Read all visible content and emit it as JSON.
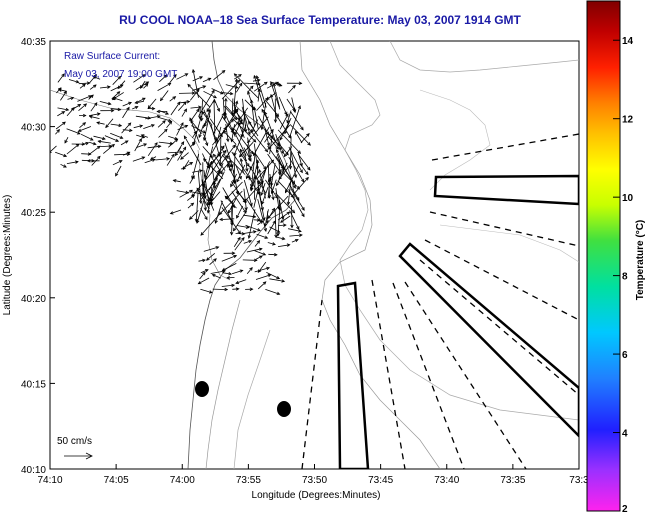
{
  "title": "RU COOL  NOAA–18  Sea Surface Temperature:  May 03, 2007 1914 GMT",
  "annotation": {
    "line1": "Raw Surface Current:",
    "line2": "May 03, 2007 19:00 GMT"
  },
  "scale": {
    "label": "50 cm/s"
  },
  "axes": {
    "xlabel": "Longitude (Degrees:Minutes)",
    "ylabel": "Latitude (Degrees:Minutes)",
    "xticks": [
      "74:10",
      "74:05",
      "74:00",
      "73:55",
      "73:50",
      "73:45",
      "73:40",
      "73:35",
      "73:3"
    ],
    "yticks": [
      "40:35",
      "40:30",
      "40:25",
      "40:20",
      "40:15",
      "40:10"
    ]
  },
  "colorbar": {
    "label": "Temperature (°C)",
    "ticks": [
      "14",
      "12",
      "10",
      "8",
      "6",
      "4",
      "2"
    ],
    "range": [
      2,
      15
    ],
    "colors": [
      "#ff22ee",
      "#9b30ff",
      "#2020ff",
      "#2080ff",
      "#00c8ff",
      "#00e0a0",
      "#40e040",
      "#c8ff00",
      "#ffff00",
      "#ffc000",
      "#ff8000",
      "#ff2000",
      "#c00000",
      "#800000"
    ]
  },
  "chart_data": {
    "type": "map",
    "title": "RU COOL  NOAA–18  Sea Surface Temperature:  May 03, 2007 1914 GMT",
    "xlabel": "Longitude (Degrees:Minutes)",
    "ylabel": "Latitude (Degrees:Minutes)",
    "xlim": [
      "74:10",
      "73:30"
    ],
    "ylim": [
      "40:10",
      "40:35"
    ],
    "stations": [
      {
        "lon": "73:59.0",
        "lat": "40:14.7"
      },
      {
        "lon": "73:52.4",
        "lat": "40:13.4"
      }
    ],
    "transects": "dashed radial lines and outlined polygons (survey boxes) offshore"
  }
}
